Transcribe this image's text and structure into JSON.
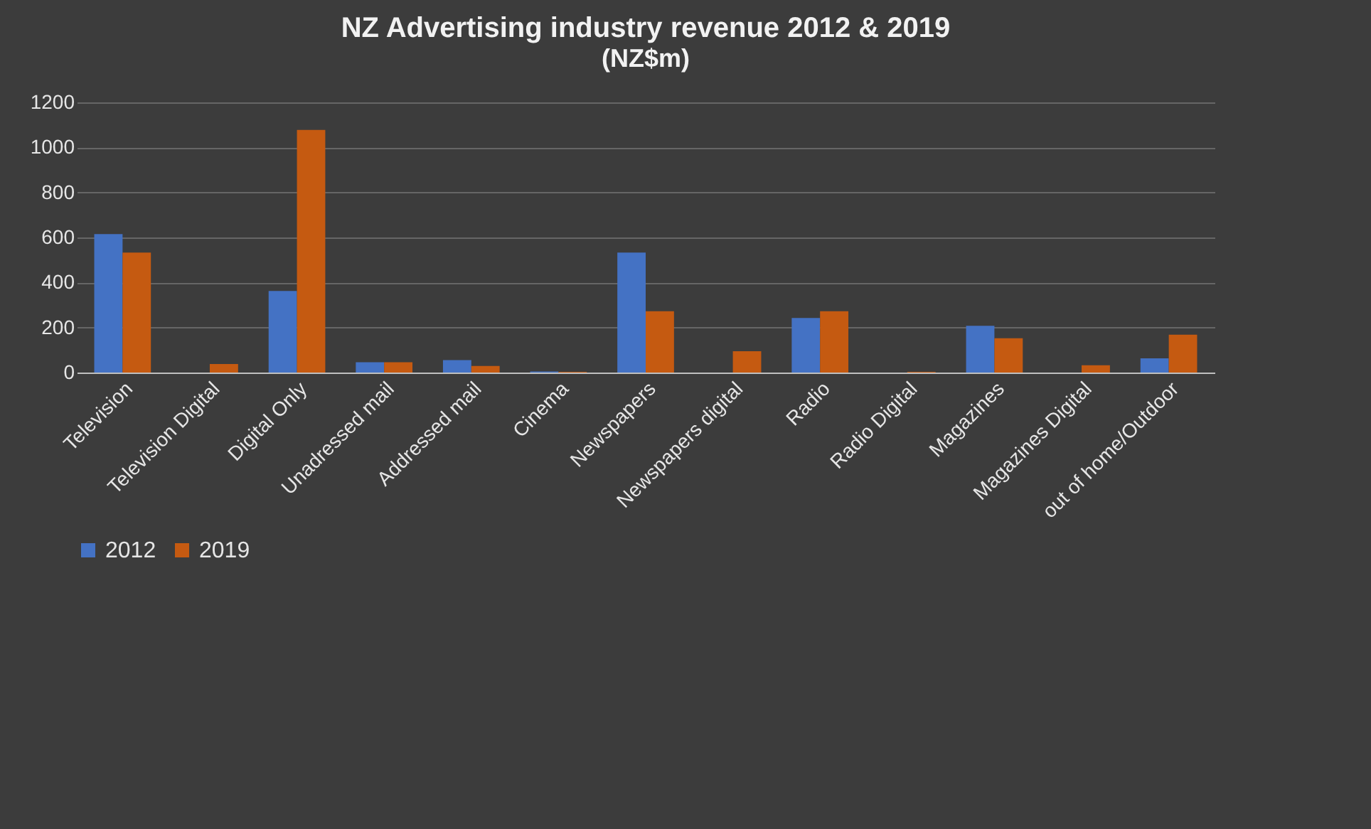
{
  "chart_data": {
    "type": "bar",
    "title": "NZ Advertising industry revenue 2012 & 2019",
    "subtitle": "(NZ$m)",
    "categories": [
      "Television",
      "Television Digital",
      "Digital Only",
      "Unadressed mail",
      "Addressed mail",
      "Cinema",
      "Newspapers",
      "Newspapers digital",
      "Radio",
      "Radio Digital",
      "Magazines",
      "Magazines Digital",
      "out of home/Outdoor"
    ],
    "series": [
      {
        "name": "2012",
        "color": "#4472c4",
        "values": [
          615,
          0,
          362,
          46,
          55,
          5,
          533,
          0,
          242,
          0,
          208,
          0,
          63
        ]
      },
      {
        "name": "2019",
        "color": "#c55a11",
        "values": [
          533,
          38,
          1078,
          46,
          29,
          3,
          272,
          95,
          272,
          3,
          152,
          32,
          168
        ]
      }
    ],
    "ylim": [
      0,
      1200
    ],
    "yticks": [
      0,
      200,
      400,
      600,
      800,
      1000,
      1200
    ],
    "grid": "y",
    "legend": "bottom"
  }
}
